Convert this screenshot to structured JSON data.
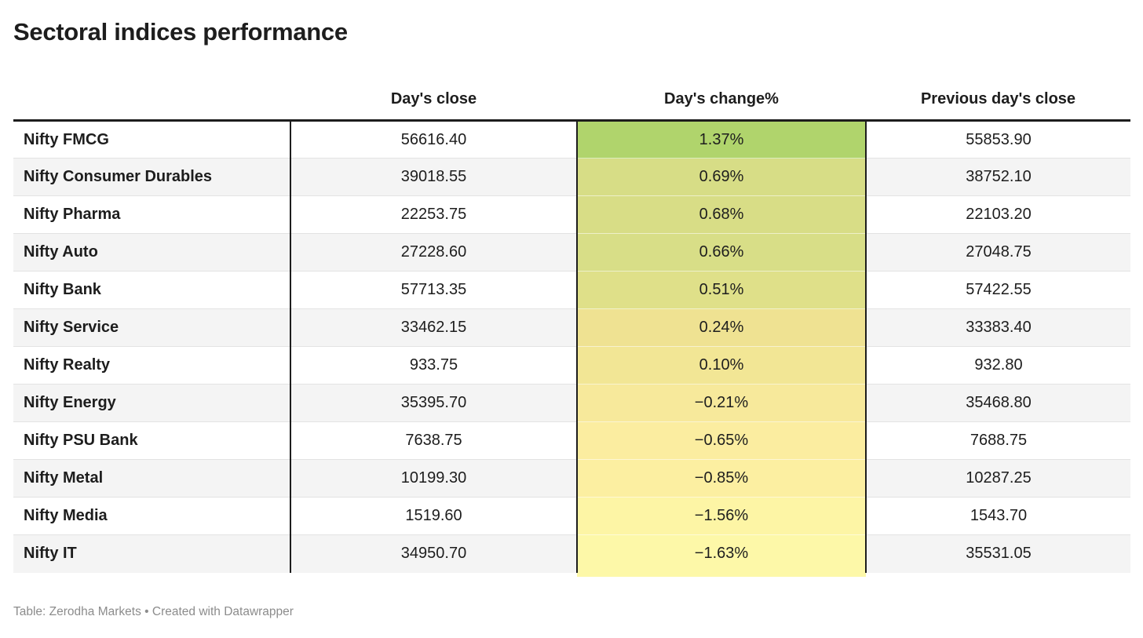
{
  "title": "Sectoral indices performance",
  "table": {
    "columns": [
      "",
      "Day's close",
      "Day's change%",
      "Previous day's close"
    ],
    "rows": [
      {
        "label": "Nifty FMCG",
        "close": "56616.40",
        "change": "1.37%",
        "prev": "55853.90",
        "cell_color": "#b0d46c"
      },
      {
        "label": "Nifty Consumer Durables",
        "close": "39018.55",
        "change": "0.69%",
        "prev": "38752.10",
        "cell_color": "#d7dd86"
      },
      {
        "label": "Nifty Pharma",
        "close": "22253.75",
        "change": "0.68%",
        "prev": "22103.20",
        "cell_color": "#d8dd86"
      },
      {
        "label": "Nifty Auto",
        "close": "27228.60",
        "change": "0.66%",
        "prev": "27048.75",
        "cell_color": "#d8de87"
      },
      {
        "label": "Nifty Bank",
        "close": "57713.35",
        "change": "0.51%",
        "prev": "57422.55",
        "cell_color": "#dfe089"
      },
      {
        "label": "Nifty Service",
        "close": "33462.15",
        "change": "0.24%",
        "prev": "33383.40",
        "cell_color": "#efe292"
      },
      {
        "label": "Nifty Realty",
        "close": "933.75",
        "change": "0.10%",
        "prev": "932.80",
        "cell_color": "#f2e695"
      },
      {
        "label": "Nifty Energy",
        "close": "35395.70",
        "change": "−0.21%",
        "prev": "35468.80",
        "cell_color": "#f7e99b"
      },
      {
        "label": "Nifty PSU Bank",
        "close": "7638.75",
        "change": "−0.65%",
        "prev": "7688.75",
        "cell_color": "#fbeda0"
      },
      {
        "label": "Nifty Metal",
        "close": "10199.30",
        "change": "−0.85%",
        "prev": "10287.25",
        "cell_color": "#fcefa1"
      },
      {
        "label": "Nifty Media",
        "close": "1519.60",
        "change": "−1.56%",
        "prev": "1543.70",
        "cell_color": "#fdf5a5"
      },
      {
        "label": "Nifty IT",
        "close": "34950.70",
        "change": "−1.63%",
        "prev": "35531.05",
        "cell_color": "#fdf8a8"
      }
    ]
  },
  "footer": {
    "prefix": "Table: ",
    "source": "Zerodha Markets",
    "middle": " • Created with ",
    "tool": "Datawrapper"
  },
  "colors": {
    "header_border": "#1d1d1d",
    "alt_row_bg": "#f4f4f4",
    "row_divider": "#e3e3e3",
    "footer_text": "#8c8c8c",
    "heatmap_max_green": "#b0d46c",
    "heatmap_min_yellow": "#fdf8a8"
  },
  "chart_data": {
    "type": "table",
    "title": "Sectoral indices performance",
    "columns": [
      "",
      "Day's close",
      "Day's change%",
      "Previous day's close"
    ],
    "rows": [
      [
        "Nifty FMCG",
        56616.4,
        1.37,
        55853.9
      ],
      [
        "Nifty Consumer Durables",
        39018.55,
        0.69,
        38752.1
      ],
      [
        "Nifty Pharma",
        22253.75,
        0.68,
        22103.2
      ],
      [
        "Nifty Auto",
        27228.6,
        0.66,
        27048.75
      ],
      [
        "Nifty Bank",
        57713.35,
        0.51,
        57422.55
      ],
      [
        "Nifty Service",
        33462.15,
        0.24,
        33383.4
      ],
      [
        "Nifty Realty",
        933.75,
        0.1,
        932.8
      ],
      [
        "Nifty Energy",
        35395.7,
        -0.21,
        35468.8
      ],
      [
        "Nifty PSU Bank",
        7638.75,
        -0.65,
        7688.75
      ],
      [
        "Nifty Metal",
        10199.3,
        -0.85,
        10287.25
      ],
      [
        "Nifty Media",
        1519.6,
        -1.56,
        1543.7
      ],
      [
        "Nifty IT",
        34950.7,
        -1.63,
        35531.05
      ]
    ],
    "heatmap_column": "Day's change%",
    "heatmap_value_range": [
      -1.63,
      1.37
    ],
    "heatmap_color_range": [
      "#fdf8a8",
      "#b0d46c"
    ]
  }
}
